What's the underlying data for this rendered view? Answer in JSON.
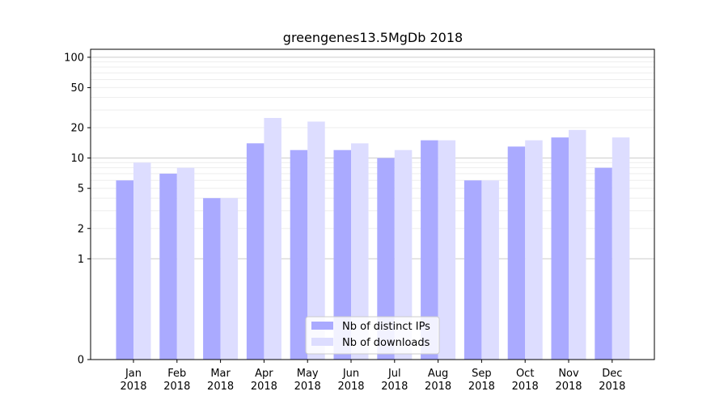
{
  "chart_data": {
    "type": "bar",
    "title": "greengenes13.5MgDb 2018",
    "xlabel": "",
    "ylabel": "",
    "yscale": "symlog",
    "ylim": [
      0,
      120
    ],
    "y_ticks": [
      0,
      1,
      2,
      5,
      10,
      20,
      50,
      100
    ],
    "y_tick_labels": [
      "0",
      "1",
      "2",
      "5",
      "10",
      "20",
      "50",
      "100"
    ],
    "grid": "horizontal, major and minor",
    "categories": [
      "Jan\n2018",
      "Feb\n2018",
      "Mar\n2018",
      "Apr\n2018",
      "May\n2018",
      "Jun\n2018",
      "Jul\n2018",
      "Aug\n2018",
      "Sep\n2018",
      "Oct\n2018",
      "Nov\n2018",
      "Dec\n2018"
    ],
    "category_lines": [
      [
        "Jan",
        "2018"
      ],
      [
        "Feb",
        "2018"
      ],
      [
        "Mar",
        "2018"
      ],
      [
        "Apr",
        "2018"
      ],
      [
        "May",
        "2018"
      ],
      [
        "Jun",
        "2018"
      ],
      [
        "Jul",
        "2018"
      ],
      [
        "Aug",
        "2018"
      ],
      [
        "Sep",
        "2018"
      ],
      [
        "Oct",
        "2018"
      ],
      [
        "Nov",
        "2018"
      ],
      [
        "Dec",
        "2018"
      ]
    ],
    "series": [
      {
        "name": "Nb of distinct IPs",
        "color": "#aaaaff",
        "values": [
          6,
          7,
          4,
          14,
          12,
          12,
          10,
          15,
          6,
          13,
          16,
          8
        ]
      },
      {
        "name": "Nb of downloads",
        "color": "#ddddff",
        "values": [
          9,
          8,
          4,
          25,
          23,
          14,
          12,
          15,
          6,
          15,
          19,
          16
        ]
      }
    ],
    "legend_position": "bottom-center"
  }
}
